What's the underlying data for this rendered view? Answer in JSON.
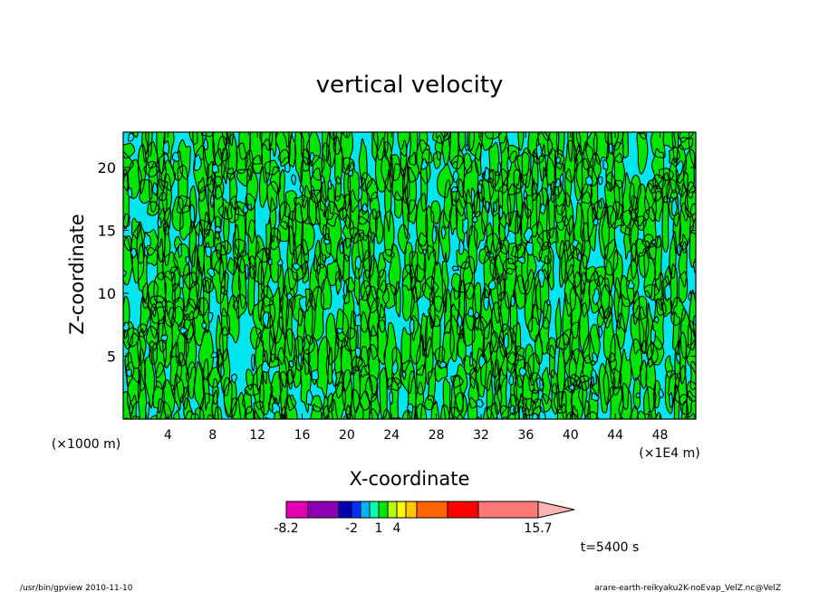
{
  "chart_data": {
    "type": "heatmap",
    "title": "vertical velocity",
    "xlabel": "X-coordinate",
    "ylabel": "Z-coordinate",
    "x_unit_left": "(×1000 m)",
    "x_unit_right": "(×1E4 m)",
    "xlim": [
      0,
      51.2
    ],
    "ylim": [
      0,
      22.8
    ],
    "x_ticks": [
      "4",
      "8",
      "12",
      "16",
      "20",
      "24",
      "28",
      "32",
      "36",
      "40",
      "44",
      "48"
    ],
    "y_ticks": [
      "5",
      "10",
      "15",
      "20"
    ],
    "x_tick_values": [
      4,
      8,
      12,
      16,
      20,
      24,
      28,
      32,
      36,
      40,
      44,
      48
    ],
    "y_tick_values": [
      5,
      10,
      15,
      20
    ],
    "grid": false,
    "field_colors": {
      "below_zero": "#00e5ee",
      "above_zero": "#00e600",
      "contour_line": "#000000"
    },
    "colorbar": {
      "tick_labels": [
        "-8.2",
        "-2",
        "1",
        "4",
        "15.7"
      ],
      "colors": [
        "#e600b4",
        "#8c00b4",
        "#0000b4",
        "#0032ff",
        "#00b4ff",
        "#00ffb4",
        "#00e600",
        "#b4ff00",
        "#ffff00",
        "#ffc800",
        "#ff6400",
        "#ff0000",
        "#ff7878",
        "#ffb4b4"
      ],
      "extends_max": true
    },
    "time_label": "t=5400 s"
  },
  "footer": {
    "left": "/usr/bin/gpview   2010-11-10",
    "right": "arare-earth-reikyaku2K-noEvap_VelZ.nc@VelZ"
  }
}
